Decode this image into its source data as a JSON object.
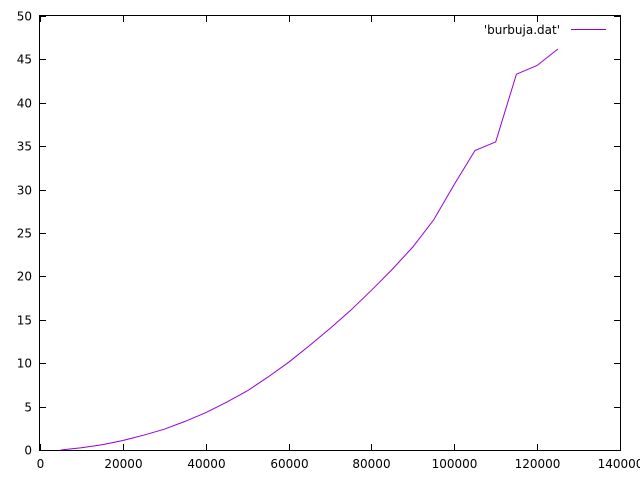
{
  "chart_data": {
    "type": "line",
    "title": "",
    "xlabel": "",
    "ylabel": "",
    "xlim": [
      0,
      140000
    ],
    "ylim": [
      0,
      50
    ],
    "x_ticks": [
      0,
      20000,
      40000,
      60000,
      80000,
      100000,
      120000,
      140000
    ],
    "y_ticks": [
      0,
      5,
      10,
      15,
      20,
      25,
      30,
      35,
      40,
      45,
      50
    ],
    "grid": false,
    "legend_position": "top-right",
    "series": [
      {
        "name": "'burbuja.dat'",
        "color": "#9400d3",
        "x": [
          5000,
          10000,
          15000,
          20000,
          25000,
          30000,
          35000,
          40000,
          45000,
          50000,
          55000,
          60000,
          65000,
          70000,
          75000,
          80000,
          85000,
          90000,
          95000,
          100000,
          105000,
          110000,
          115000,
          120000,
          125000
        ],
        "y": [
          0.0,
          0.25,
          0.6,
          1.1,
          1.7,
          2.4,
          3.3,
          4.3,
          5.5,
          6.8,
          8.4,
          10.1,
          12.0,
          14.0,
          16.1,
          18.4,
          20.8,
          23.4,
          26.5,
          30.6,
          34.5,
          35.5,
          43.3,
          44.3,
          46.2
        ]
      }
    ]
  }
}
